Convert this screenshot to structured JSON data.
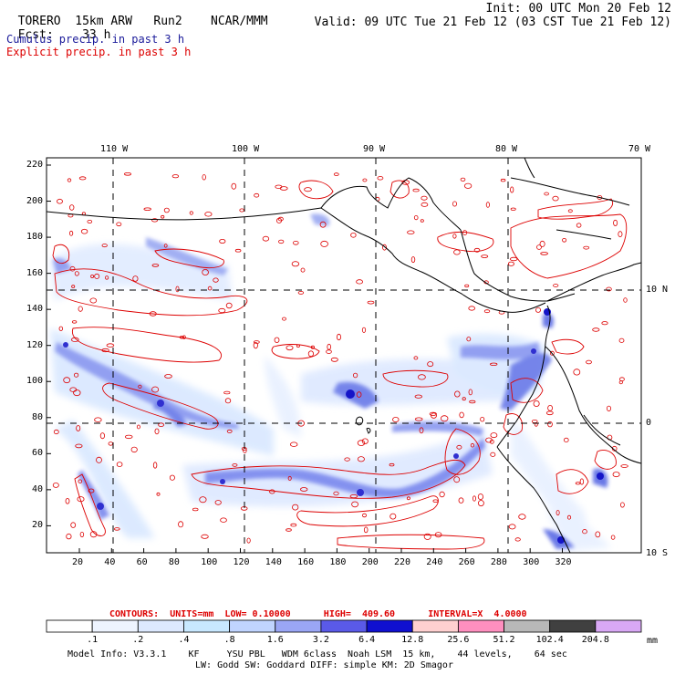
{
  "header": {
    "model": "TORERO",
    "resolution": "15km ARW",
    "run": "Run2",
    "org": "NCAR/MMM",
    "init": "Init: 00 UTC Mon 20 Feb 12",
    "fcst_label": "Fcst:",
    "fcst_value": "33 h",
    "valid": "Valid: 09 UTC Tue 21 Feb 12 (03 CST Tue 21 Feb 12)"
  },
  "legend": {
    "cumulus": "Cumulus precip. in past 3 h",
    "explicit": "Explicit precip. in past 3 h",
    "cumulus_color": "#1a1a9a",
    "explicit_color": "#dd0000"
  },
  "axes": {
    "top_lon": [
      "110 W",
      "100 W",
      "90 W",
      "80 W",
      "70 W"
    ],
    "right_lat": [
      "10 N",
      "0",
      "10 S"
    ],
    "y_ticks": [
      "220",
      "200",
      "180",
      "160",
      "140",
      "120",
      "100",
      "80",
      "60",
      "40",
      "20"
    ],
    "x_ticks": [
      "20",
      "40",
      "60",
      "80",
      "100",
      "120",
      "140",
      "160",
      "180",
      "200",
      "220",
      "240",
      "260",
      "280",
      "300",
      "320"
    ]
  },
  "contour_info": {
    "text": "CONTOURS:  UNITS=mm  LOW= 0.10000      HIGH=  409.60      INTERVAL=X  4.0000",
    "color": "#dd0000"
  },
  "colorbar": {
    "levels": [
      ".1",
      ".2",
      ".4",
      ".8",
      "1.6",
      "3.2",
      "6.4",
      "12.8",
      "25.6",
      "51.2",
      "102.4",
      "204.8"
    ],
    "colors": [
      "#ffffff",
      "#eef4ff",
      "#dde9ff",
      "#c8e8ff",
      "#c0d4ff",
      "#9aa6f5",
      "#5a5ae8",
      "#1010d0",
      "#ffd0d0",
      "#ff8fbf",
      "#b8b8b8",
      "#404040",
      "#d9a8f5"
    ],
    "unit": "mm"
  },
  "footer": {
    "line1": "Model Info: V3.3.1    KF     YSU PBL   WDM 6class  Noah LSM  15 km,    44 levels,    64 sec",
    "line2": "LW: Godd SW: Goddard DIFF: simple KM: 2D Smagor"
  }
}
